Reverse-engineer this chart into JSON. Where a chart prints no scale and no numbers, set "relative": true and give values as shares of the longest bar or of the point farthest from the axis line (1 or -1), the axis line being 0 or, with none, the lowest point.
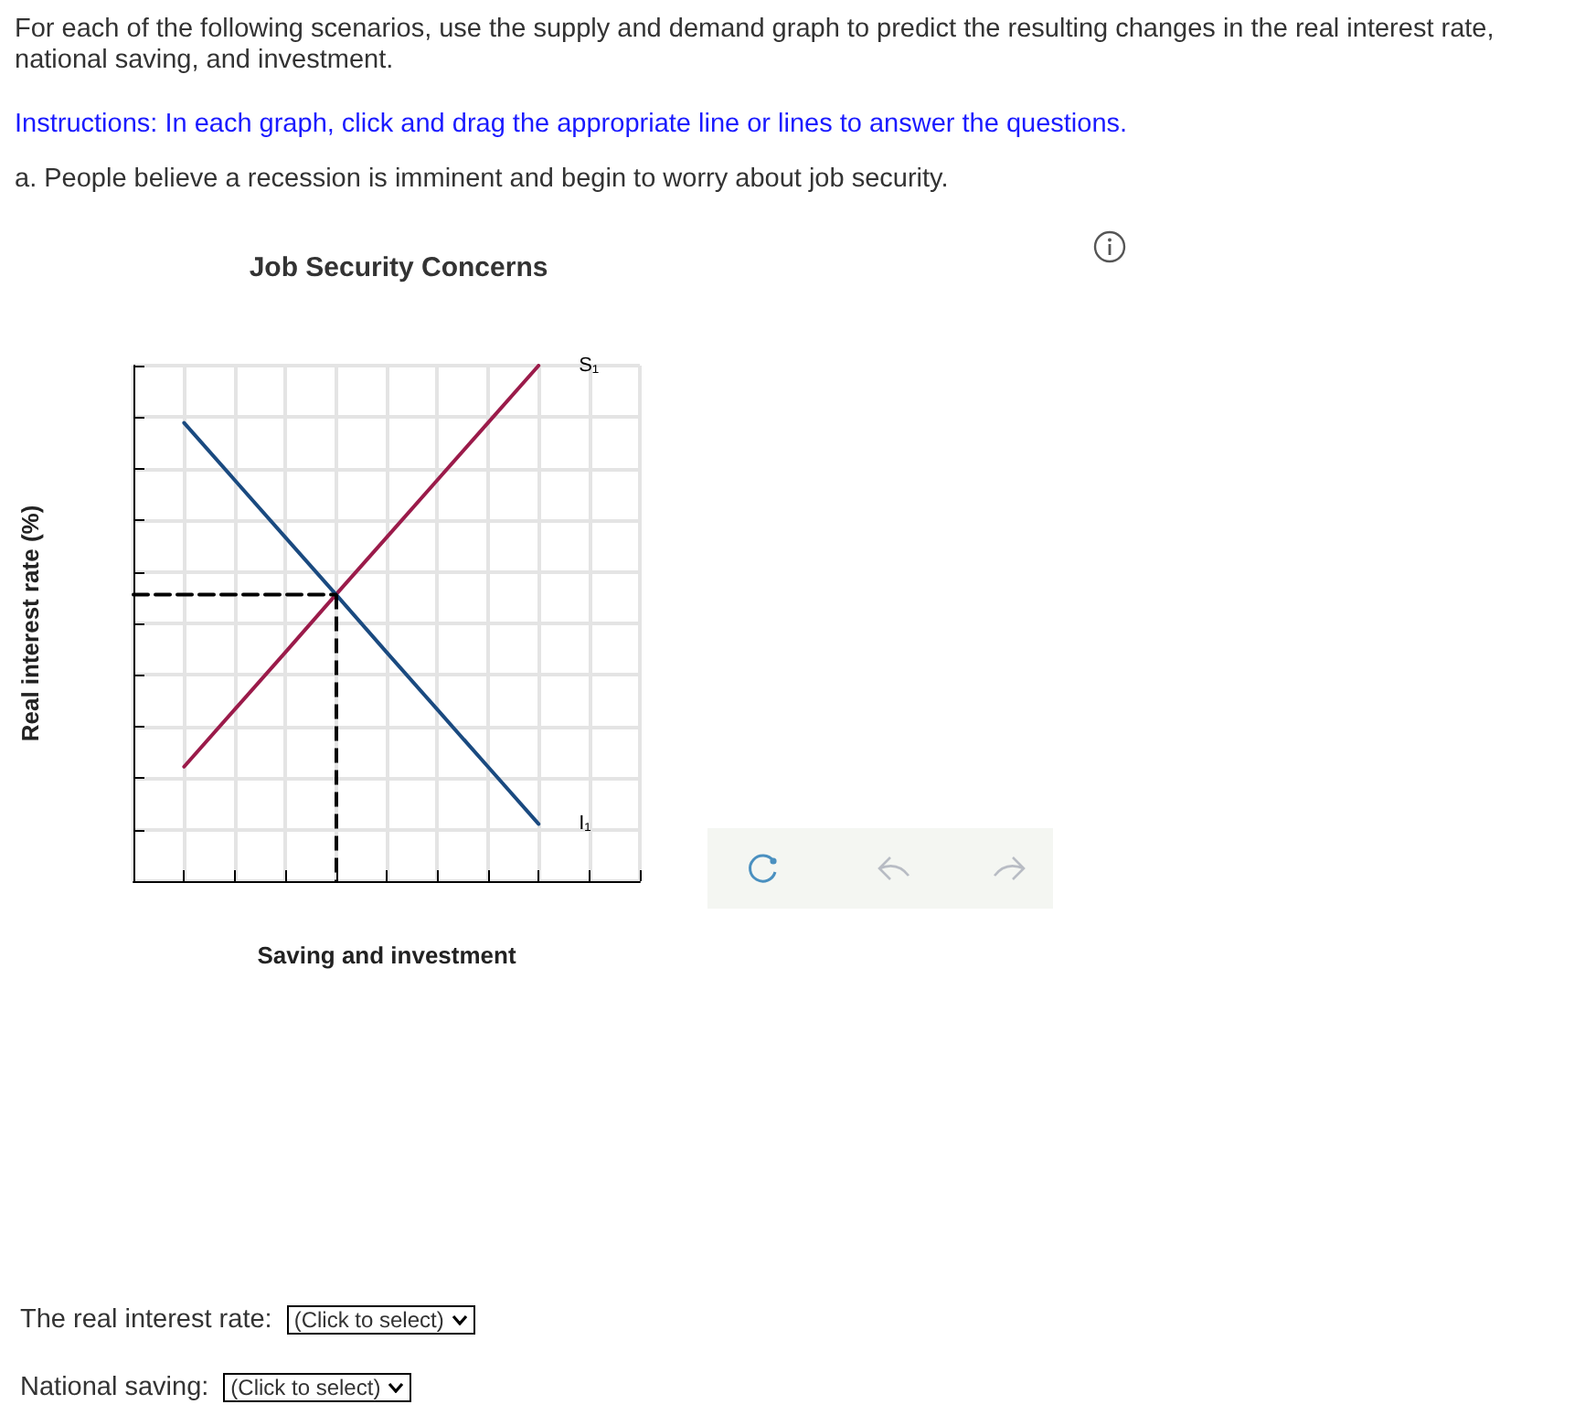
{
  "chart_data": {
    "type": "line",
    "title": "Job Security Concerns",
    "xlabel": "Saving and investment",
    "ylabel": "Real interest rate (%)",
    "relative": true,
    "categories": [
      null,
      null,
      null,
      null,
      null,
      null,
      null,
      null,
      null,
      null,
      null
    ],
    "grid": true,
    "legend": false,
    "marker": "none",
    "series": [
      {
        "name": "S₁",
        "color": "#9b1b4a",
        "values": [
          null,
          0.222,
          0.333,
          0.444,
          0.556,
          0.667,
          0.778,
          0.889,
          1,
          null,
          null
        ]
      },
      {
        "name": "I₁",
        "color": "#1a4a80",
        "values": [
          null,
          0.889,
          0.778,
          0.667,
          0.556,
          0.444,
          0.333,
          0.222,
          0.111,
          null,
          null
        ]
      },
      {
        "color": "#000000",
        "values": [
          0.556,
          0.556,
          0.556,
          0.556,
          0.556,
          null,
          null,
          null,
          null,
          null,
          null
        ],
        "line_style": "dashed"
      }
    ],
    "annotations": [
      "For each of the following scenarios, use the supply and demand graph to predict the resulting changes in the real interest rate, national saving, and investment.",
      "Instructions: In each graph, click and drag the appropriate line or lines to answer the questions.",
      "a. People believe a recession is imminent and begin to worry about job security.",
      "The real interest rate:",
      "(Click to select)",
      "National saving:",
      "(Click to select)"
    ]
  }
}
